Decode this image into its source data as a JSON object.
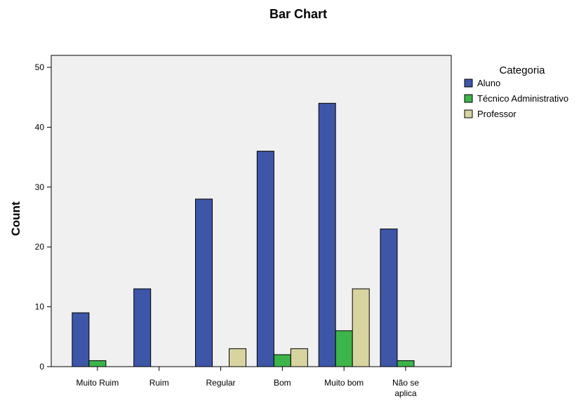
{
  "chart_data": {
    "type": "bar",
    "title": "Bar Chart",
    "xlabel": "",
    "ylabel": "Count",
    "ylim": [
      0,
      52
    ],
    "yticks": [
      0,
      10,
      20,
      30,
      40,
      50
    ],
    "categories": [
      "Muito Ruim",
      "Ruim",
      "Regular",
      "Bom",
      "Muito bom",
      "Não se aplica"
    ],
    "category_label_lines": [
      [
        "Muito Ruim"
      ],
      [
        "Ruim"
      ],
      [
        "Regular"
      ],
      [
        "Bom"
      ],
      [
        "Muito bom"
      ],
      [
        "Não se",
        "aplica"
      ]
    ],
    "legend_title": "Categoria",
    "legend_position": "right",
    "grid": false,
    "plot_background": "#f0f0f0",
    "series": [
      {
        "name": "Aluno",
        "color": "#3d56a8",
        "values": [
          9,
          13,
          28,
          36,
          44,
          23
        ]
      },
      {
        "name": "Técnico Administrativo",
        "color": "#3cb54a",
        "values": [
          1,
          0,
          0,
          2,
          6,
          1
        ]
      },
      {
        "name": "Professor",
        "color": "#d8d4a0",
        "values": [
          0,
          0,
          3,
          3,
          13,
          0
        ]
      }
    ]
  }
}
